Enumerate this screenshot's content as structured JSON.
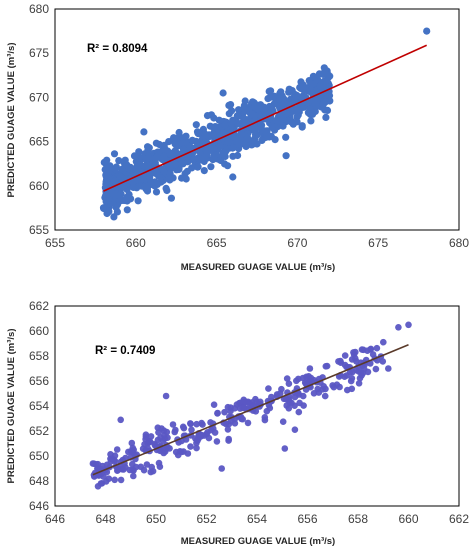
{
  "chart_data": [
    {
      "type": "scatter",
      "xlabel": "MEASURED GUAGE VALUE (m³/s)",
      "ylabel": "PREDICTED GUAGE VALUE (m³/s)",
      "annotation": "R² = 0.8094",
      "xlim": [
        655,
        680
      ],
      "ylim": [
        655,
        680
      ],
      "x_ticks": [
        655,
        660,
        665,
        670,
        675,
        680
      ],
      "y_ticks": [
        655,
        660,
        665,
        670,
        675,
        680
      ],
      "x_tick_labels": [
        "655",
        "660",
        "665",
        "670",
        "675",
        "680"
      ],
      "y_tick_labels": [
        "655",
        "660",
        "665",
        "670",
        "675",
        "680"
      ],
      "point_color": "#4472C4",
      "trendline": {
        "color": "#C00000",
        "x": [
          658,
          678
        ],
        "y": [
          659.4,
          675.9
        ]
      },
      "point_cloud": {
        "x_range": [
          658,
          672
        ],
        "y_band": 2.4,
        "count": 950,
        "seed": 11
      },
      "points": [
        {
          "x": 678,
          "y": 677.5
        },
        {
          "x": 665.4,
          "y": 670.5
        },
        {
          "x": 669.3,
          "y": 663.4
        },
        {
          "x": 662.2,
          "y": 658.6
        },
        {
          "x": 671.6,
          "y": 672.6
        },
        {
          "x": 658.2,
          "y": 662.9
        },
        {
          "x": 666.0,
          "y": 661.0
        },
        {
          "x": 660.5,
          "y": 666.1
        }
      ],
      "grid": false,
      "legend": "none"
    },
    {
      "type": "scatter",
      "xlabel": "MEASURED GUAGE VALUE (m³/s)",
      "ylabel": "PREDICTED GUAGE VALUE (m³/s)",
      "annotation": "R² = 0.7409",
      "xlim": [
        646,
        662
      ],
      "ylim": [
        646,
        662
      ],
      "x_ticks": [
        646,
        648,
        650,
        652,
        654,
        656,
        658,
        660,
        662
      ],
      "y_ticks": [
        646,
        648,
        650,
        652,
        654,
        656,
        658,
        660,
        662
      ],
      "x_tick_labels": [
        "646",
        "648",
        "650",
        "652",
        "654",
        "656",
        "658",
        "660",
        "662"
      ],
      "y_tick_labels": [
        "646",
        "648",
        "650",
        "652",
        "654",
        "656",
        "658",
        "660",
        "662"
      ],
      "point_color": "#5B57C4",
      "trendline": {
        "color": "#5A3A2A",
        "x": [
          647.5,
          660
        ],
        "y": [
          648.5,
          658.9
        ]
      },
      "point_cloud": {
        "x_range": [
          647.5,
          659
        ],
        "y_band": 1.3,
        "count": 340,
        "seed": 29
      },
      "points": [
        {
          "x": 660,
          "y": 660.5
        },
        {
          "x": 659.6,
          "y": 660.3
        },
        {
          "x": 659,
          "y": 659.1
        },
        {
          "x": 659.2,
          "y": 657
        },
        {
          "x": 650.4,
          "y": 654.8
        },
        {
          "x": 652.6,
          "y": 649
        },
        {
          "x": 655.5,
          "y": 652.1
        },
        {
          "x": 655.1,
          "y": 650.6
        },
        {
          "x": 649.1,
          "y": 648.4
        },
        {
          "x": 648.6,
          "y": 652.9
        },
        {
          "x": 647.5,
          "y": 649.4
        }
      ],
      "grid": false,
      "legend": "none"
    }
  ]
}
